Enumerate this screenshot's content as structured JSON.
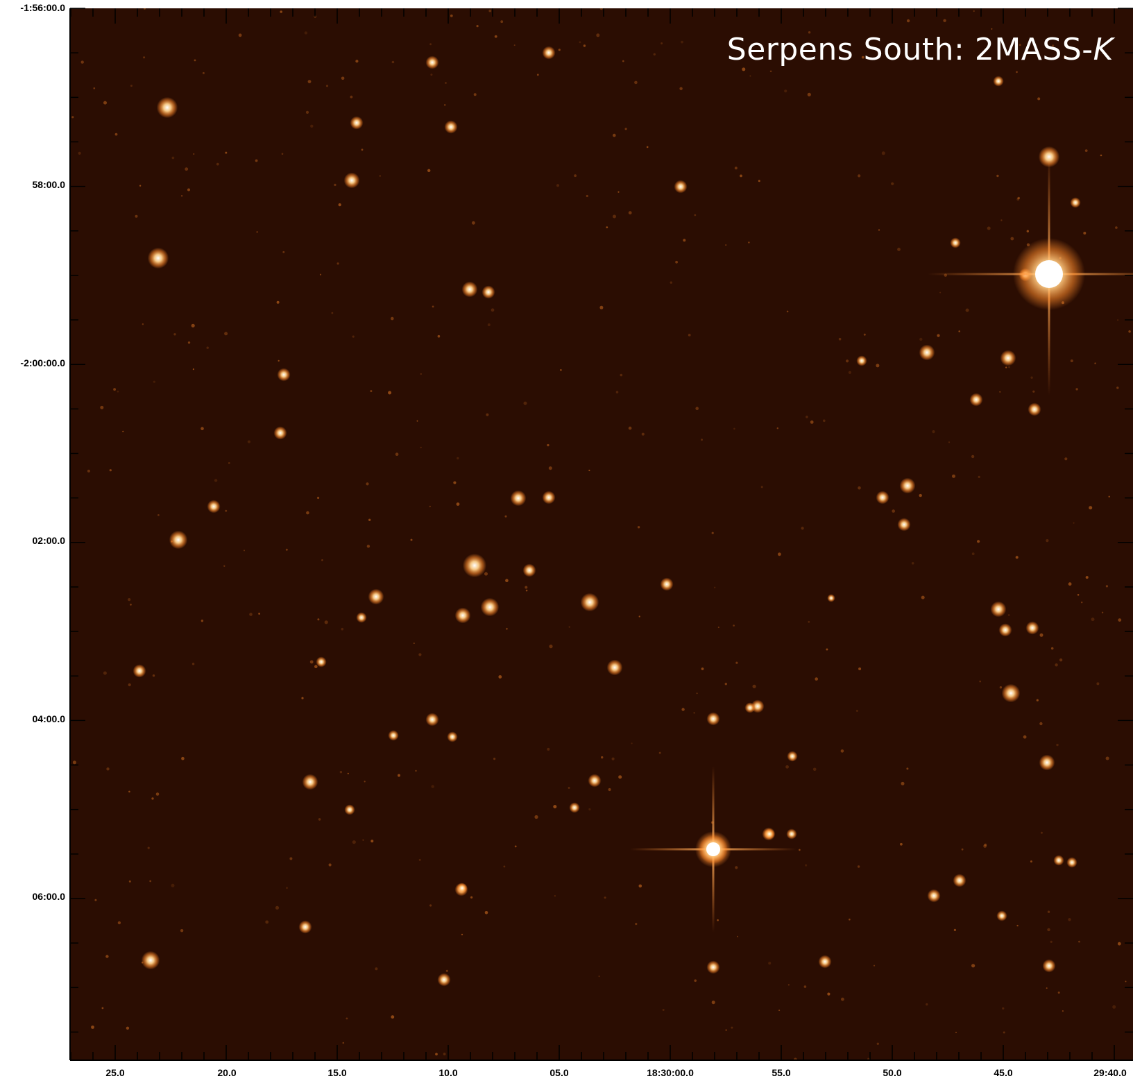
{
  "title": {
    "text": "Serpens South: 2MASS-",
    "band": "K"
  },
  "colors": {
    "background": "#2b0d02",
    "star_core": "#ffffff",
    "star_glow": "#ff8a2a",
    "axis": "#000000"
  },
  "y_axis": {
    "labels": [
      "-1:56:00.0",
      "58:00.0",
      "-2:00:00.0",
      "02:00.0",
      "04:00.0",
      "06:00.0"
    ]
  },
  "x_axis": {
    "labels": [
      "25.0",
      "20.0",
      "15.0",
      "10.0",
      "05.0",
      "18:30:00.0",
      "55.0",
      "50.0",
      "45.0",
      "29:40.0"
    ]
  }
}
